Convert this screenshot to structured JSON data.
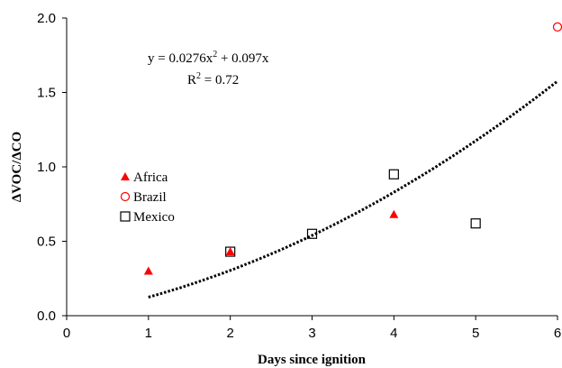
{
  "chart_data": {
    "type": "scatter",
    "xlabel": "Days since ignition",
    "ylabel": "ΔVOC/ΔCO",
    "xlim": [
      0,
      6
    ],
    "ylim": [
      0,
      2
    ],
    "x_ticks": [
      "0",
      "1",
      "2",
      "3",
      "4",
      "5",
      "6"
    ],
    "y_ticks": [
      "0.0",
      "0.5",
      "1.0",
      "1.5",
      "2.0"
    ],
    "grid": false,
    "legend_position": "left",
    "series": [
      {
        "name": "Africa",
        "marker": "filled-triangle",
        "color": "#ff0000",
        "points": [
          {
            "x": 1,
            "y": 0.3
          },
          {
            "x": 2,
            "y": 0.43
          },
          {
            "x": 4,
            "y": 0.68
          }
        ]
      },
      {
        "name": "Brazil",
        "marker": "open-circle",
        "color": "#ff0000",
        "points": [
          {
            "x": 6,
            "y": 1.94
          }
        ]
      },
      {
        "name": "Mexico",
        "marker": "open-square",
        "color": "#000000",
        "points": [
          {
            "x": 2,
            "y": 0.43
          },
          {
            "x": 3,
            "y": 0.55
          },
          {
            "x": 4,
            "y": 0.95
          },
          {
            "x": 5,
            "y": 0.62
          }
        ]
      }
    ],
    "fit": {
      "style": "dotted",
      "color": "#000000",
      "a": 0.0276,
      "b": 0.097,
      "x_range": [
        1,
        6
      ],
      "equation_base": "y = 0.0276x",
      "equation_power": "2",
      "equation_tail": " + 0.097x",
      "r2_base": "R",
      "r2_power": "2",
      "r2_tail": " = 0.72"
    }
  }
}
